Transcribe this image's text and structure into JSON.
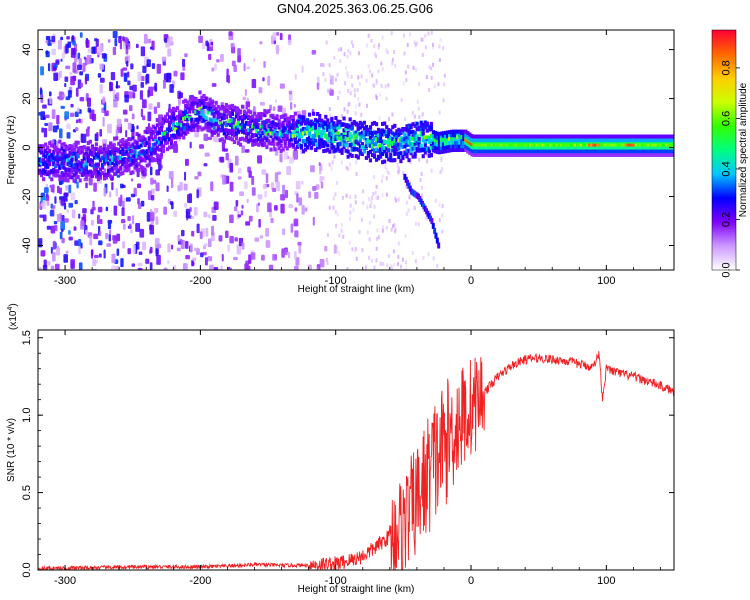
{
  "title": "GN04.2025.363.06.25.G06",
  "chart_data": [
    {
      "type": "heatmap",
      "title": "",
      "xlabel": "Height of straight line (km)",
      "ylabel": "Frequency (Hz)",
      "xlim": [
        -320,
        150
      ],
      "ylim": [
        -50,
        48
      ],
      "xticks": [
        -300,
        -200,
        -100,
        0,
        100
      ],
      "yticks": [
        -40,
        -20,
        0,
        20,
        40
      ],
      "colorbar": {
        "label": "Normalized spectral amplitude",
        "range": [
          0.0,
          0.95
        ],
        "ticks": [
          0.0,
          0.2,
          0.4,
          0.6,
          0.8
        ],
        "colormap": [
          "#ffffff",
          "#cc99ff",
          "#7f00ff",
          "#0000ff",
          "#00c8ff",
          "#00ff80",
          "#33ff00",
          "#ccff00",
          "#ffcc00",
          "#ff6600",
          "#ff0033"
        ]
      },
      "ridge": {
        "x": [
          -320,
          -290,
          -260,
          -240,
          -225,
          -210,
          -200,
          -190,
          -170,
          -150,
          -130,
          -110,
          -90,
          -70,
          -55,
          -45,
          -35,
          -25,
          -15,
          -5,
          0,
          20,
          50,
          80,
          100,
          120,
          150
        ],
        "y": [
          -5,
          -6,
          -4,
          0,
          7,
          12,
          15,
          11,
          9,
          7,
          6,
          6,
          4,
          2,
          2,
          3,
          4,
          2,
          3,
          3,
          1,
          1,
          1,
          1,
          1,
          1,
          1
        ]
      },
      "branch": {
        "x": [
          -50,
          -45,
          -40,
          -35,
          -30,
          -25
        ],
        "y": [
          -12,
          -18,
          -20,
          -25,
          -30,
          -40
        ]
      }
    },
    {
      "type": "line",
      "title": "",
      "xlabel": "Height of straight line (km)",
      "ylabel": "SNR (10 * v/v)",
      "scale_label": "(x10",
      "scale_exp": "4",
      "scale_close": ")",
      "color": "#ee2222",
      "xlim": [
        -320,
        150
      ],
      "ylim": [
        0,
        1.55
      ],
      "xticks": [
        -300,
        -200,
        -100,
        0,
        100
      ],
      "yticks": [
        0.0,
        0.5,
        1.0,
        1.5
      ],
      "series": [
        {
          "x": [
            -320,
            -280,
            -240,
            -200,
            -180,
            -160,
            -140,
            -120,
            -100,
            -90,
            -80,
            -70,
            -60,
            -50,
            -40,
            -30,
            -20,
            -10,
            0,
            10,
            20,
            30,
            40,
            50,
            60,
            70,
            80,
            90,
            95,
            97,
            100,
            110,
            120,
            130,
            140,
            150
          ],
          "y": [
            0.01,
            0.015,
            0.02,
            0.02,
            0.025,
            0.035,
            0.03,
            0.03,
            0.04,
            0.06,
            0.09,
            0.15,
            0.22,
            0.3,
            0.45,
            0.65,
            0.8,
            0.95,
            1.05,
            1.15,
            1.25,
            1.32,
            1.36,
            1.37,
            1.36,
            1.35,
            1.33,
            1.31,
            1.4,
            1.1,
            1.3,
            1.27,
            1.25,
            1.22,
            1.19,
            1.15
          ]
        }
      ]
    }
  ]
}
